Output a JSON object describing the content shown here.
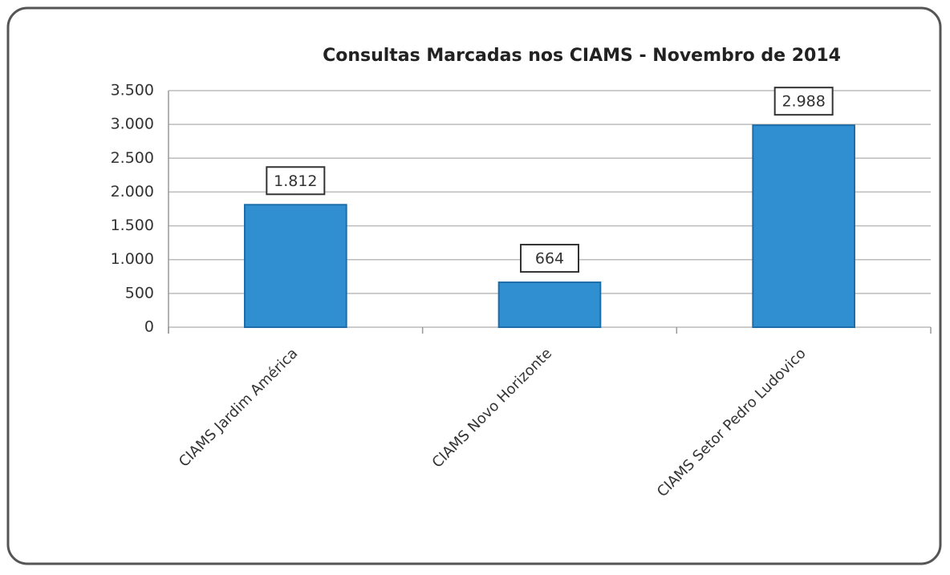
{
  "chart_data": {
    "type": "bar",
    "title": "Consultas Marcadas nos CIAMS - Novembro de 2014",
    "categories": [
      "CIAMS Jardim América",
      "CIAMS Novo Horizonte",
      "CIAMS Setor Pedro Ludovico"
    ],
    "values": [
      1812,
      664,
      2988
    ],
    "value_labels": [
      "1.812",
      "664",
      "2.988"
    ],
    "color": "#2f8fd1",
    "ylim": [
      0,
      3500
    ],
    "yticks": [
      0,
      500,
      {
        "value": 1000,
        "label": "1.000"
      },
      {
        "value": 1500,
        "label": "1.500"
      },
      {
        "value": 2000,
        "label": "2.000"
      },
      {
        "value": 2500,
        "label": "2.500"
      },
      {
        "value": 3000,
        "label": "3.000"
      },
      {
        "value": 3500,
        "label": "3.500"
      }
    ],
    "grid": true
  }
}
